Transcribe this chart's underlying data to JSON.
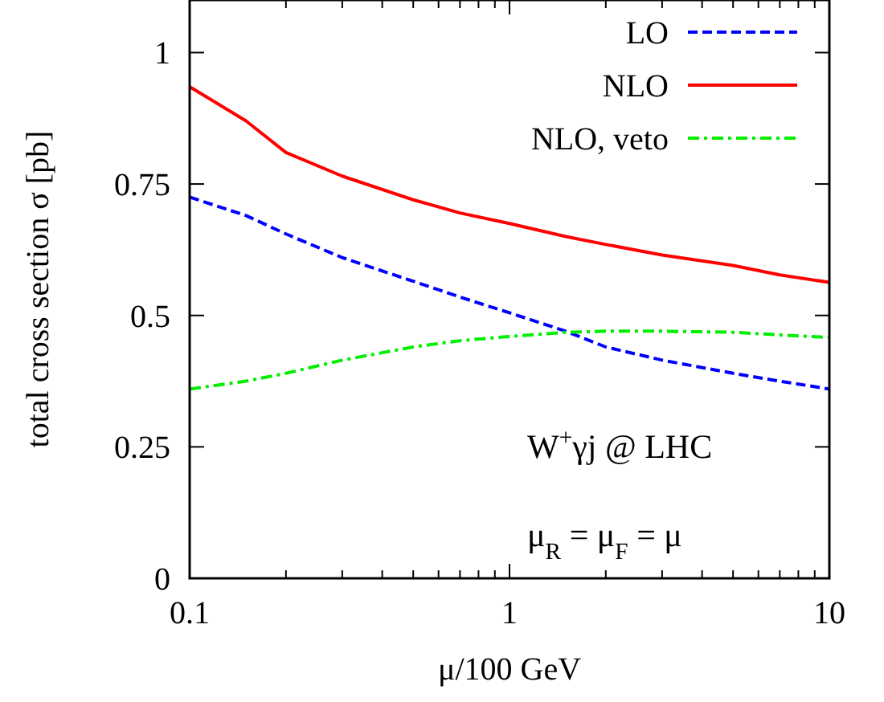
{
  "chart_data": {
    "type": "line",
    "xlabel": "μ/100 GeV",
    "ylabel": "total cross section σ [pb]",
    "log": "x",
    "xlim": [
      0.1,
      10
    ],
    "ylim": [
      0,
      1.1
    ],
    "xticks": [
      0.1,
      {
        "value": 0.2,
        "label": null
      },
      {
        "value": 0.3,
        "label": null
      },
      {
        "value": 0.4,
        "label": null
      },
      {
        "value": 0.5,
        "label": null
      },
      {
        "value": 0.6,
        "label": null
      },
      {
        "value": 0.7,
        "label": null
      },
      {
        "value": 0.8,
        "label": null
      },
      {
        "value": 0.9,
        "label": null
      },
      1,
      {
        "value": 2,
        "label": null
      },
      {
        "value": 3,
        "label": null
      },
      {
        "value": 4,
        "label": null
      },
      {
        "value": 5,
        "label": null
      },
      {
        "value": 6,
        "label": null
      },
      {
        "value": 7,
        "label": null
      },
      {
        "value": 8,
        "label": null
      },
      {
        "value": 9,
        "label": null
      },
      10
    ],
    "yticks": [
      0,
      0.25,
      0.5,
      0.75,
      1
    ],
    "x": [
      0.1,
      0.15,
      0.2,
      0.3,
      0.5,
      0.7,
      1,
      1.5,
      2,
      3,
      5,
      7,
      10
    ],
    "series": [
      {
        "name": "LO",
        "color": "#0000ff",
        "line_style": "dashed",
        "values": [
          0.725,
          0.69,
          0.655,
          0.61,
          0.565,
          0.535,
          0.505,
          0.47,
          0.44,
          0.415,
          0.39,
          0.375,
          0.36
        ]
      },
      {
        "name": "NLO",
        "color": "#ff0000",
        "line_style": "solid",
        "values": [
          0.935,
          0.87,
          0.81,
          0.765,
          0.72,
          0.695,
          0.675,
          0.65,
          0.635,
          0.615,
          0.595,
          0.577,
          0.563
        ]
      },
      {
        "name": "NLO, veto",
        "color": "#00ee00",
        "line_style": "dashdot",
        "values": [
          0.36,
          0.375,
          0.39,
          0.415,
          0.44,
          0.452,
          0.46,
          0.468,
          0.47,
          0.47,
          0.468,
          0.463,
          0.458
        ]
      }
    ],
    "legend": "top right",
    "grid": false,
    "marker": "none",
    "annotations": [
      "W$^{+}$γj @ LHC",
      "μ$_{R}$ = μ$_{F}$ = μ"
    ]
  }
}
